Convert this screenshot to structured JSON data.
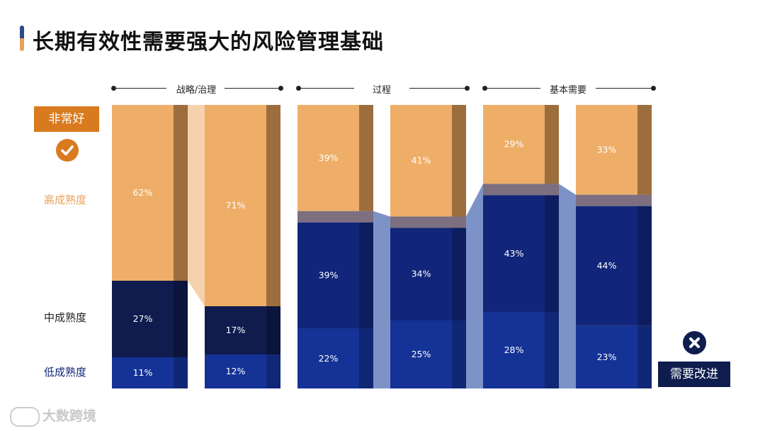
{
  "title": "长期有效性需要强大的风险管理基础",
  "left_panel": {
    "box_label": "非常好",
    "high_label": "高成熟度",
    "mid_label": "中成熟度",
    "low_label": "低成熟度"
  },
  "right_panel": {
    "box_label": "需要改进"
  },
  "watermark": "大数跨境",
  "colors": {
    "high": "#eeae68",
    "mid_dark": "#0f1c4d",
    "mid": "#11267a",
    "low": "#153296",
    "accent": "#d97a1e",
    "connector_blue": "#7d93c8",
    "connector_orange": "#f5d2ad"
  },
  "chart_data": {
    "type": "bar",
    "stacked": true,
    "groups": [
      "战略/治理",
      "过程",
      "基本需要"
    ],
    "categories": [
      "",
      "",
      "",
      "",
      "",
      ""
    ],
    "series": [
      {
        "name": "",
        "values": [
          62,
          71,
          39,
          41,
          29,
          33
        ]
      },
      {
        "name": "",
        "values": [
          27,
          17,
          39,
          34,
          43,
          44
        ]
      },
      {
        "name": "",
        "values": [
          11,
          12,
          22,
          25,
          28,
          23
        ]
      }
    ],
    "value_labels": [
      [
        "62%",
        "71%",
        "39%",
        "41%",
        "29%",
        "33%"
      ],
      [
        "27%",
        "17%",
        "39%",
        "34%",
        "43%",
        "44%"
      ],
      [
        "11%",
        "12%",
        "22%",
        "25%",
        "28%",
        "23%"
      ]
    ],
    "ylim": [
      0,
      100
    ]
  }
}
